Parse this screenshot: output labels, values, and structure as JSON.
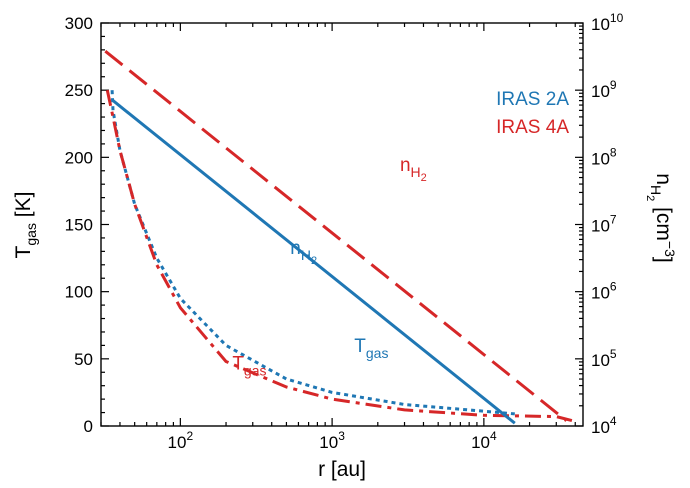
{
  "chart_data": {
    "type": "line",
    "x_scale": "log",
    "xlim": [
      30,
      45000
    ],
    "ylim_left": [
      0,
      300
    ],
    "ylim_right": [
      10000,
      10000000000
    ],
    "y_right_scale": "log",
    "xlabel": {
      "main": "r [au]"
    },
    "ylabel_left": {
      "main": "T",
      "sub": "gas",
      "tail": " [K]"
    },
    "ylabel_right": {
      "main": "n",
      "sub": "H",
      "subsub": "2",
      "tail": " [cm",
      "sup": "−3",
      "end": "]"
    },
    "x_ticks": [
      {
        "value": 100,
        "base": "10",
        "exp": "2"
      },
      {
        "value": 1000,
        "base": "10",
        "exp": "3"
      },
      {
        "value": 10000,
        "base": "10",
        "exp": "4"
      }
    ],
    "y_left_ticks": [
      "0",
      "50",
      "100",
      "150",
      "200",
      "250",
      "300"
    ],
    "y_right_ticks": [
      {
        "value": 10000,
        "base": "10",
        "exp": "4"
      },
      {
        "value": 100000,
        "base": "10",
        "exp": "5"
      },
      {
        "value": 1000000,
        "base": "10",
        "exp": "6"
      },
      {
        "value": 10000000,
        "base": "10",
        "exp": "7"
      },
      {
        "value": 100000000,
        "base": "10",
        "exp": "8"
      },
      {
        "value": 1000000000,
        "base": "10",
        "exp": "9"
      },
      {
        "value": 10000000000,
        "base": "10",
        "exp": "10"
      }
    ],
    "legend": {
      "placement": "upper-right",
      "entries": [
        {
          "label": "IRAS 2A",
          "color": "#1f77b4"
        },
        {
          "label": "IRAS 4A",
          "color": "#d62728"
        }
      ]
    },
    "series": [
      {
        "name": "IRAS 2A T_gas",
        "source": "IRAS 2A",
        "quantity": "T_gas",
        "axis": "left",
        "color": "#1f77b4",
        "style": "dotted",
        "points": [
          [
            35.5,
            250
          ],
          [
            36,
            235
          ],
          [
            40,
            205
          ],
          [
            50,
            165
          ],
          [
            70,
            125
          ],
          [
            100,
            95
          ],
          [
            200,
            60
          ],
          [
            500,
            35
          ],
          [
            1000,
            25
          ],
          [
            3000,
            16
          ],
          [
            10000,
            11
          ],
          [
            16000,
            9
          ]
        ]
      },
      {
        "name": "IRAS 4A T_gas",
        "source": "IRAS 4A",
        "quantity": "T_gas",
        "axis": "left",
        "color": "#d62728",
        "style": "dash-dot",
        "points": [
          [
            33,
            250
          ],
          [
            36,
            230
          ],
          [
            40,
            205
          ],
          [
            50,
            165
          ],
          [
            70,
            120
          ],
          [
            100,
            88
          ],
          [
            200,
            48
          ],
          [
            500,
            29
          ],
          [
            1000,
            20
          ],
          [
            3000,
            12
          ],
          [
            10000,
            8
          ],
          [
            30000,
            7
          ],
          [
            38000,
            4
          ]
        ]
      },
      {
        "name": "IRAS 2A n_H2",
        "source": "IRAS 2A",
        "quantity": "n_H2",
        "axis": "right",
        "color": "#1f77b4",
        "style": "solid",
        "points": [
          [
            36,
            700000000
          ],
          [
            16000,
            11000
          ]
        ]
      },
      {
        "name": "IRAS 4A n_H2",
        "source": "IRAS 4A",
        "quantity": "n_H2",
        "axis": "right",
        "color": "#d62728",
        "style": "dashed",
        "points": [
          [
            32,
            3800000000
          ],
          [
            35000,
            12000
          ]
        ]
      }
    ],
    "annotations": [
      {
        "main": "n",
        "sub": "H",
        "subsub": "2",
        "color": "#d62728",
        "at": [
          2800,
          190
        ]
      },
      {
        "main": "n",
        "sub": "H",
        "subsub": "2",
        "color": "#1f77b4",
        "at": [
          530,
          128
        ]
      },
      {
        "main": "T",
        "sub": "gas",
        "color": "#1f77b4",
        "at": [
          1400,
          55
        ]
      },
      {
        "main": "T",
        "sub": "gas",
        "color": "#d62728",
        "at": [
          220,
          42
        ]
      }
    ]
  }
}
